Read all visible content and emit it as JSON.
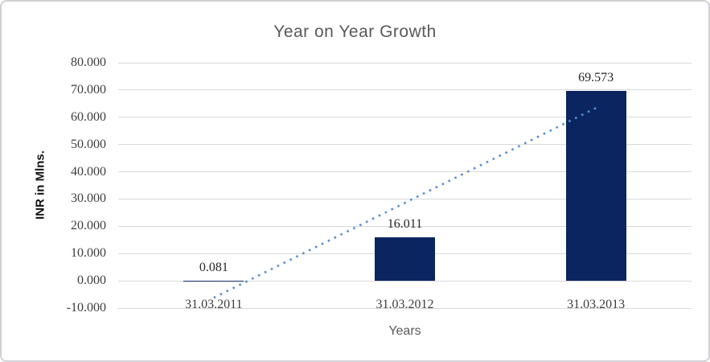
{
  "window": {
    "background": "#ffffff",
    "border_color": "#d0d0d5"
  },
  "chart_data": {
    "type": "bar",
    "title": "Year on Year Growth",
    "xlabel": "Years",
    "ylabel": "INR in Mlns.",
    "categories": [
      "31.03.2011",
      "31.03.2012",
      "31.03.2013"
    ],
    "values": [
      0.081,
      16.011,
      69.573
    ],
    "value_labels": [
      "0.081",
      "16.011",
      "69.573"
    ],
    "y_ticks": [
      {
        "value": 80,
        "label": "80.000"
      },
      {
        "value": 70,
        "label": "70.000"
      },
      {
        "value": 60,
        "label": "60.000"
      },
      {
        "value": 50,
        "label": "50.000"
      },
      {
        "value": 40,
        "label": "40.000"
      },
      {
        "value": 30,
        "label": "30.000"
      },
      {
        "value": 20,
        "label": "20.000"
      },
      {
        "value": 10,
        "label": "10.000"
      },
      {
        "value": 0,
        "label": "0.000"
      },
      {
        "value": -10,
        "label": "-10.000"
      }
    ],
    "ylim": [
      -10,
      80
    ],
    "grid": true,
    "legend": "none",
    "bar_color": "#0a2560",
    "gridline_color": "#d9d9d9",
    "title_color": "#595959",
    "trendline": {
      "type": "linear",
      "style": "dotted",
      "color": "#5490d4",
      "start_value": -6.2,
      "end_value": 63.4
    }
  }
}
